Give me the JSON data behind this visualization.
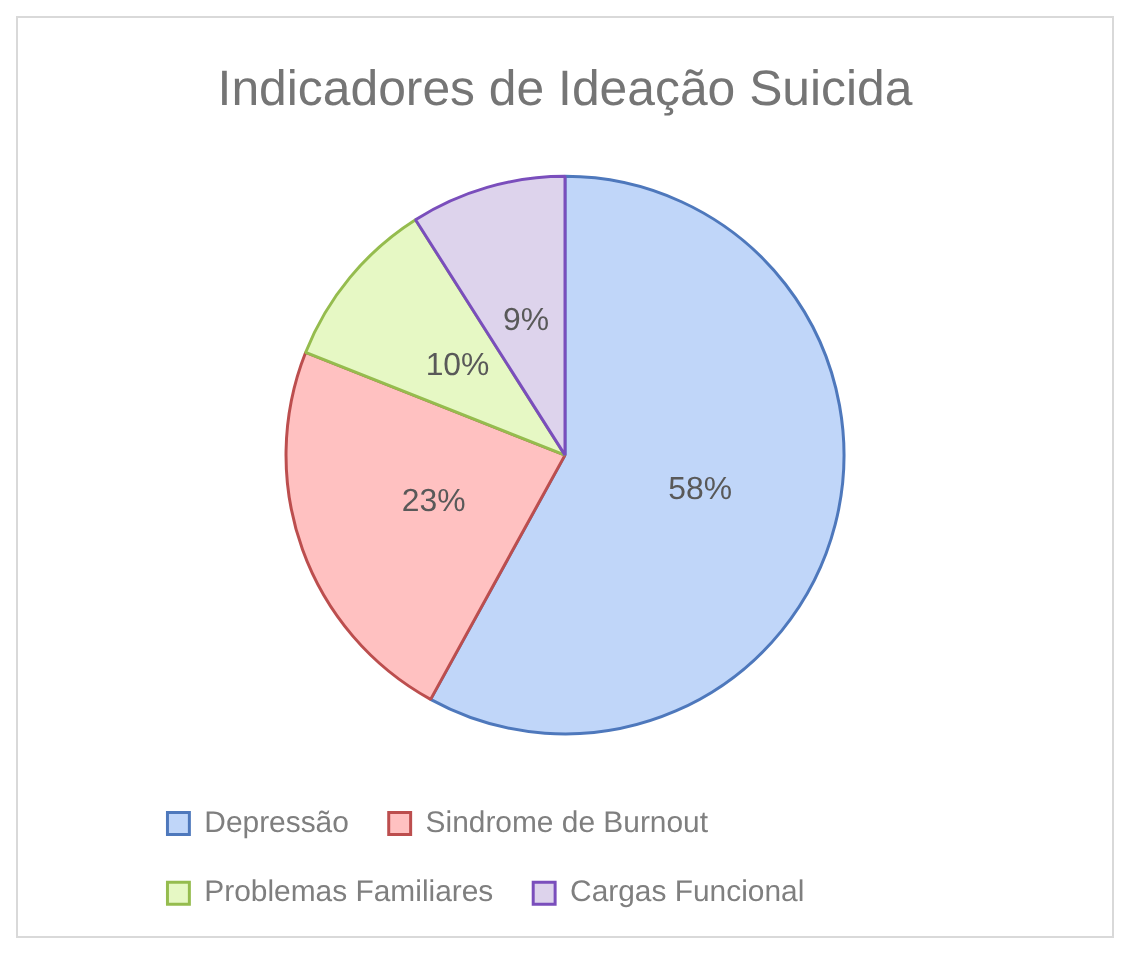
{
  "chart_data": {
    "type": "pie",
    "title": "Indicadores de Ideação Suicida",
    "categories": [
      "Depressão",
      "Sindrome de Burnout",
      "Problemas Familiares",
      "Cargas Funcional"
    ],
    "values": [
      58,
      23,
      10,
      9
    ],
    "colors": [
      "#c0d6f9",
      "#ffc1c1",
      "#e6f8c4",
      "#ddd3ec"
    ],
    "value_labels": [
      "58%",
      "23%",
      "10%",
      "9%"
    ],
    "legend": "bottom"
  }
}
